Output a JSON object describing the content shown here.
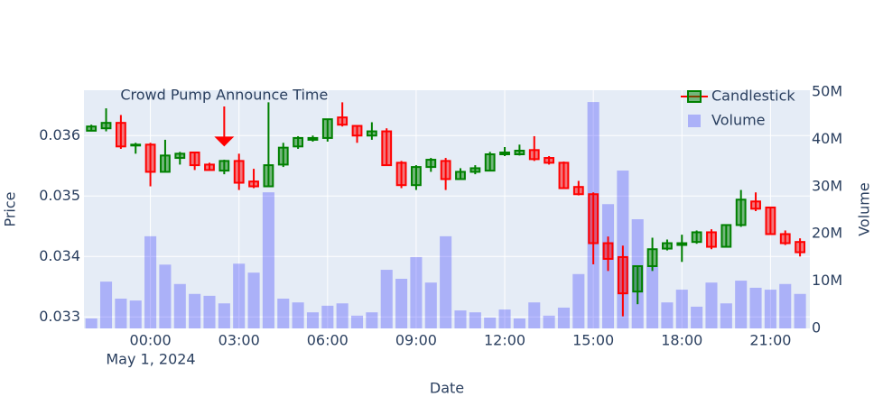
{
  "chart_data": {
    "type": "candlestick",
    "x_title": "Date",
    "y_title": "Price",
    "y2_title": "Volume",
    "x_date_label": "May 1, 2024",
    "x": [
      "2024-04-30 22:00",
      "2024-04-30 22:30",
      "2024-04-30 23:00",
      "2024-04-30 23:30",
      "2024-05-01 00:00",
      "2024-05-01 00:30",
      "2024-05-01 01:00",
      "2024-05-01 01:30",
      "2024-05-01 02:00",
      "2024-05-01 02:30",
      "2024-05-01 03:00",
      "2024-05-01 03:30",
      "2024-05-01 04:00",
      "2024-05-01 04:30",
      "2024-05-01 05:00",
      "2024-05-01 05:30",
      "2024-05-01 06:00",
      "2024-05-01 06:30",
      "2024-05-01 07:00",
      "2024-05-01 07:30",
      "2024-05-01 08:00",
      "2024-05-01 08:30",
      "2024-05-01 09:00",
      "2024-05-01 09:30",
      "2024-05-01 10:00",
      "2024-05-01 10:30",
      "2024-05-01 11:00",
      "2024-05-01 11:30",
      "2024-05-01 12:00",
      "2024-05-01 12:30",
      "2024-05-01 13:00",
      "2024-05-01 13:30",
      "2024-05-01 14:00",
      "2024-05-01 14:30",
      "2024-05-01 15:00",
      "2024-05-01 15:30",
      "2024-05-01 16:00",
      "2024-05-01 16:30",
      "2024-05-01 17:00",
      "2024-05-01 17:30",
      "2024-05-01 18:00",
      "2024-05-01 18:30",
      "2024-05-01 19:00",
      "2024-05-01 19:30",
      "2024-05-01 20:00",
      "2024-05-01 20:30",
      "2024-05-01 21:00",
      "2024-05-01 21:30",
      "2024-05-01 22:00"
    ],
    "xlim": [
      "2024-04-30 21:45",
      "2024-05-01 22:20"
    ],
    "xticks": [
      {
        "value": "2024-05-01 00:00",
        "label": "00:00"
      },
      {
        "value": "2024-05-01 03:00",
        "label": "03:00"
      },
      {
        "value": "2024-05-01 06:00",
        "label": "06:00"
      },
      {
        "value": "2024-05-01 09:00",
        "label": "09:00"
      },
      {
        "value": "2024-05-01 12:00",
        "label": "12:00"
      },
      {
        "value": "2024-05-01 15:00",
        "label": "15:00"
      },
      {
        "value": "2024-05-01 18:00",
        "label": "18:00"
      },
      {
        "value": "2024-05-01 21:00",
        "label": "21:00"
      }
    ],
    "ylim": [
      0.03281,
      0.03675
    ],
    "yticks": [
      0.033,
      0.034,
      0.035,
      0.036
    ],
    "y2lim": [
      0,
      50400000
    ],
    "y2ticks": [
      0,
      {
        "value": 10000000,
        "label": "10M"
      },
      {
        "value": 20000000,
        "label": "20M"
      },
      {
        "value": 30000000,
        "label": "30M"
      },
      {
        "value": 40000000,
        "label": "40M"
      },
      {
        "value": 50000000,
        "label": "50M"
      }
    ],
    "grid": true,
    "legend": "top-right",
    "annotation": {
      "text": "Crowd Pump Announce Time",
      "x": "2024-05-01 02:30",
      "y": 0.03582,
      "color": "#ff0000"
    },
    "series": [
      {
        "name": "Candlestick",
        "increasing_color": "#008000",
        "decreasing_color": "#ff0000",
        "open": [
          0.03608,
          0.03612,
          0.03621,
          0.03584,
          0.03585,
          0.0354,
          0.03563,
          0.03572,
          0.03552,
          0.03542,
          0.03558,
          0.03524,
          0.03516,
          0.03552,
          0.03582,
          0.03593,
          0.03596,
          0.0363,
          0.03616,
          0.036,
          0.03607,
          0.03555,
          0.03518,
          0.03548,
          0.03558,
          0.03528,
          0.0354,
          0.03542,
          0.03569,
          0.03569,
          0.03576,
          0.03563,
          0.03555,
          0.03515,
          0.03503,
          0.03422,
          0.03399,
          0.03342,
          0.03384,
          0.03413,
          0.03419,
          0.03424,
          0.0344,
          0.03416,
          0.03452,
          0.03491,
          0.03481,
          0.03437,
          0.03424
        ],
        "high": [
          0.03618,
          0.03645,
          0.03634,
          0.03588,
          0.03588,
          0.03593,
          0.03573,
          0.03572,
          0.03555,
          0.0356,
          0.0357,
          0.03545,
          0.03655,
          0.03588,
          0.03599,
          0.036,
          0.03628,
          0.03655,
          0.03616,
          0.03622,
          0.03612,
          0.03558,
          0.03551,
          0.03563,
          0.03563,
          0.03546,
          0.03551,
          0.03573,
          0.03581,
          0.03585,
          0.03599,
          0.03566,
          0.03557,
          0.03525,
          0.03506,
          0.03433,
          0.03418,
          0.03384,
          0.03431,
          0.03428,
          0.03436,
          0.03443,
          0.03445,
          0.03452,
          0.0351,
          0.03506,
          0.03482,
          0.03443,
          0.0343
        ],
        "low": [
          0.03607,
          0.03607,
          0.03578,
          0.0357,
          0.03516,
          0.0354,
          0.03552,
          0.03543,
          0.03542,
          0.03536,
          0.0351,
          0.03513,
          0.03516,
          0.03548,
          0.03578,
          0.0359,
          0.0359,
          0.03615,
          0.03588,
          0.03593,
          0.03551,
          0.03513,
          0.0351,
          0.0354,
          0.0351,
          0.03527,
          0.03536,
          0.03542,
          0.03566,
          0.03567,
          0.03558,
          0.03552,
          0.03512,
          0.03501,
          0.03387,
          0.03376,
          0.03301,
          0.03321,
          0.03376,
          0.0341,
          0.03391,
          0.03421,
          0.03412,
          0.03416,
          0.03449,
          0.03475,
          0.03437,
          0.03419,
          0.034
        ],
        "close": [
          0.03615,
          0.03621,
          0.03582,
          0.03585,
          0.0354,
          0.03567,
          0.0357,
          0.03551,
          0.03543,
          0.03558,
          0.03522,
          0.03516,
          0.03551,
          0.0358,
          0.03596,
          0.03596,
          0.03627,
          0.03618,
          0.036,
          0.03607,
          0.03551,
          0.03518,
          0.03548,
          0.0356,
          0.03528,
          0.0354,
          0.03546,
          0.03569,
          0.03572,
          0.03575,
          0.03561,
          0.03555,
          0.03513,
          0.03503,
          0.03422,
          0.03396,
          0.03339,
          0.03384,
          0.03412,
          0.03422,
          0.03422,
          0.0344,
          0.03416,
          0.03452,
          0.03494,
          0.03479,
          0.03437,
          0.03422,
          0.03407
        ]
      },
      {
        "name": "Volume",
        "axis": "y2",
        "color": "rgba(0,0,255,0.25)",
        "values": [
          2100000,
          9900000,
          6300000,
          5900000,
          19500000,
          13500000,
          9400000,
          7300000,
          6900000,
          5300000,
          13700000,
          11800000,
          28800000,
          6300000,
          5500000,
          3400000,
          4800000,
          5300000,
          2700000,
          3400000,
          12400000,
          10500000,
          15100000,
          9700000,
          19500000,
          3800000,
          3400000,
          2300000,
          4000000,
          2100000,
          5500000,
          2700000,
          4400000,
          11500000,
          47900000,
          26300000,
          33400000,
          23100000,
          13000000,
          5500000,
          8200000,
          4600000,
          9700000,
          5300000,
          10100000,
          8600000,
          8200000,
          9400000,
          7300000
        ]
      }
    ]
  }
}
